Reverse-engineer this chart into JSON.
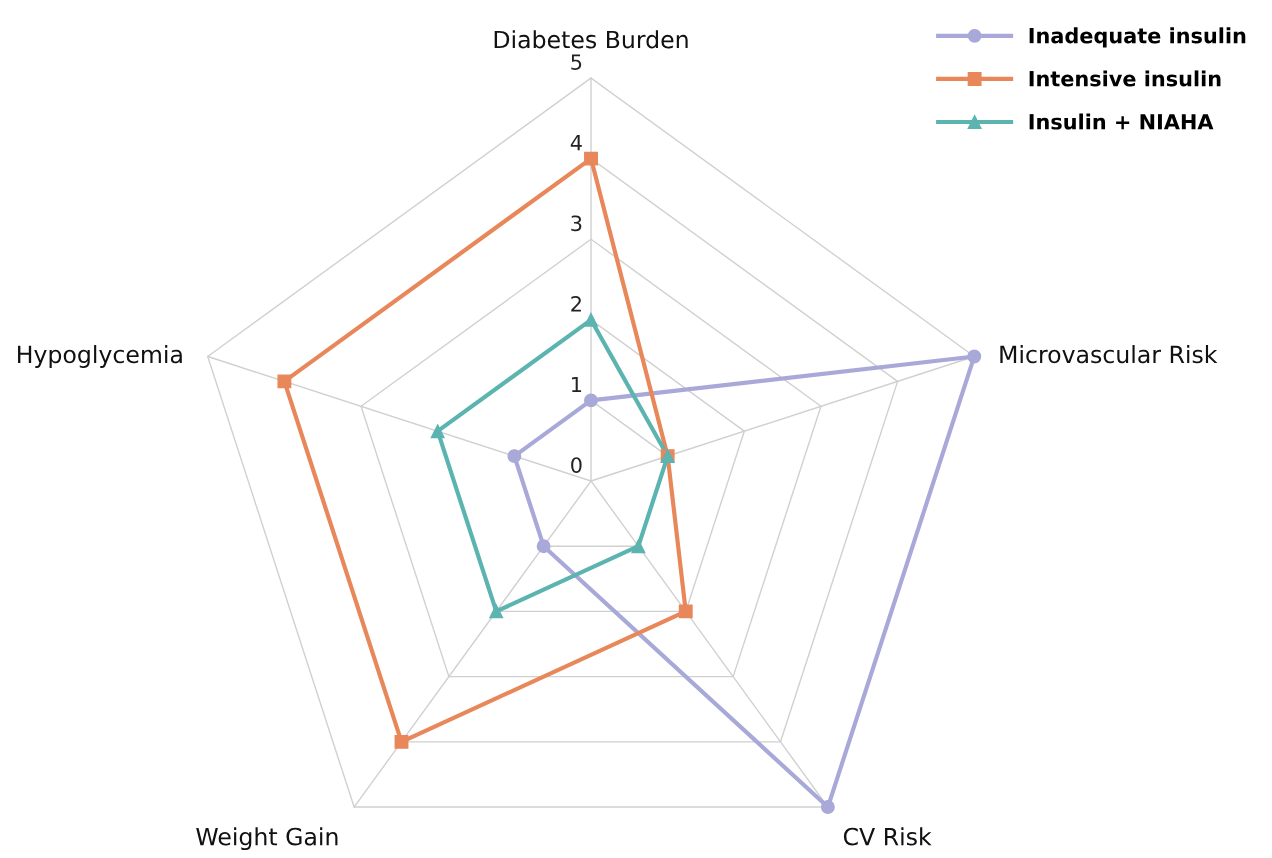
{
  "chart_data": {
    "type": "radar",
    "categories": [
      "Diabetes Burden",
      "Microvascular Risk",
      "CV Risk",
      "Weight Gain",
      "Hypoglycemia"
    ],
    "series": [
      {
        "name": "Inadequate insulin",
        "color": "#a9a9d9",
        "marker": "circle",
        "values": [
          1,
          5,
          5,
          1,
          1
        ]
      },
      {
        "name": "Intensive insulin",
        "color": "#e8875a",
        "marker": "square",
        "values": [
          4,
          1,
          2,
          4,
          4
        ]
      },
      {
        "name": "Insulin + NIAHA",
        "color": "#5cb4b0",
        "marker": "triangle",
        "values": [
          2,
          1,
          1,
          2,
          2
        ]
      }
    ],
    "ylim": [
      0,
      5
    ],
    "yticks": [
      0,
      1,
      2,
      3,
      4,
      5
    ],
    "grid": true,
    "legend": "top right",
    "line_style": "solid"
  }
}
